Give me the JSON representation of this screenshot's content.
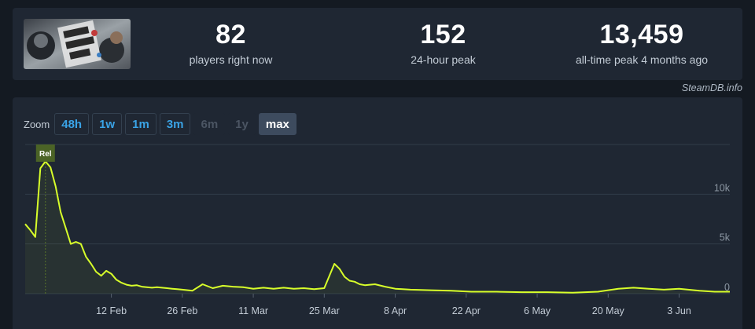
{
  "stats": {
    "current": {
      "value": "82",
      "label": "players right now"
    },
    "peak24": {
      "value": "152",
      "label": "24-hour peak"
    },
    "alltime": {
      "value": "13,459",
      "label": "all-time peak 4 months ago"
    }
  },
  "credit": "SteamDB.info",
  "zoom": {
    "label": "Zoom",
    "buttons": [
      {
        "label": "48h",
        "state": "enabled"
      },
      {
        "label": "1w",
        "state": "enabled"
      },
      {
        "label": "1m",
        "state": "enabled"
      },
      {
        "label": "3m",
        "state": "enabled"
      },
      {
        "label": "6m",
        "state": "disabled"
      },
      {
        "label": "1y",
        "state": "disabled"
      },
      {
        "label": "max",
        "state": "active"
      }
    ]
  },
  "chart_data": {
    "type": "area",
    "x_tick_labels": [
      "12 Feb",
      "26 Feb",
      "11 Mar",
      "25 Mar",
      "8 Apr",
      "22 Apr",
      "6 May",
      "20 May",
      "3 Jun"
    ],
    "y_tick_labels": [
      "0",
      "5k",
      "10k"
    ],
    "ylim": [
      0,
      15000
    ],
    "grid": true,
    "line_color": "#d8ff2a",
    "annotation": {
      "label": "Rel",
      "date": "2024-01-30"
    },
    "series": [
      {
        "x": [
          "2024-01-26",
          "2024-01-27",
          "2024-01-28",
          "2024-01-29",
          "2024-01-30",
          "2024-01-31",
          "2024-02-01",
          "2024-02-02",
          "2024-02-03",
          "2024-02-04",
          "2024-02-05",
          "2024-02-06",
          "2024-02-07",
          "2024-02-08",
          "2024-02-09",
          "2024-02-10",
          "2024-02-11",
          "2024-02-12",
          "2024-02-13",
          "2024-02-14",
          "2024-02-15",
          "2024-02-16",
          "2024-02-17",
          "2024-02-18",
          "2024-02-19",
          "2024-02-20",
          "2024-02-21",
          "2024-02-22",
          "2024-02-23",
          "2024-02-24",
          "2024-02-25",
          "2024-02-26",
          "2024-02-28",
          "2024-03-01",
          "2024-03-03",
          "2024-03-05",
          "2024-03-07",
          "2024-03-09",
          "2024-03-11",
          "2024-03-13",
          "2024-03-15",
          "2024-03-17",
          "2024-03-19",
          "2024-03-21",
          "2024-03-23",
          "2024-03-25",
          "2024-03-27",
          "2024-03-28",
          "2024-03-29",
          "2024-03-30",
          "2024-03-31",
          "2024-04-01",
          "2024-04-02",
          "2024-04-03",
          "2024-04-04",
          "2024-04-06",
          "2024-04-08",
          "2024-04-11",
          "2024-04-15",
          "2024-04-19",
          "2024-04-23",
          "2024-04-28",
          "2024-05-03",
          "2024-05-08",
          "2024-05-13",
          "2024-05-18",
          "2024-05-22",
          "2024-05-25",
          "2024-05-28",
          "2024-05-31",
          "2024-06-03",
          "2024-06-07",
          "2024-06-10",
          "2024-06-13"
        ],
        "y": [
          7000,
          6400,
          5700,
          12600,
          13300,
          12700,
          10800,
          8200,
          6600,
          5000,
          5200,
          5000,
          3700,
          3000,
          2200,
          1800,
          2300,
          2000,
          1400,
          1100,
          900,
          800,
          850,
          700,
          650,
          600,
          650,
          600,
          550,
          500,
          450,
          400,
          300,
          950,
          550,
          800,
          700,
          650,
          500,
          600,
          500,
          600,
          500,
          550,
          450,
          550,
          3000,
          2500,
          1700,
          1300,
          1200,
          950,
          850,
          900,
          950,
          700,
          500,
          400,
          350,
          300,
          200,
          200,
          150,
          150,
          100,
          200,
          500,
          600,
          500,
          400,
          500,
          300,
          200,
          200
        ]
      }
    ]
  }
}
